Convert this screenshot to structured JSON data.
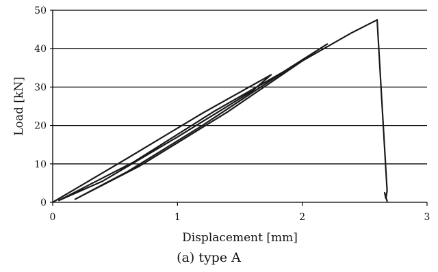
{
  "chart_data": {
    "type": "line",
    "caption": "(a) type A",
    "xlabel": "Displacement [mm]",
    "ylabel": "Load [kN]",
    "xlim": [
      0,
      3
    ],
    "ylim": [
      0,
      50
    ],
    "xticks": [
      0,
      1,
      2,
      3
    ],
    "yticks": [
      0,
      10,
      20,
      30,
      40,
      50
    ],
    "xtick_labels": [
      "0",
      "1",
      "2",
      "3"
    ],
    "ytick_labels": [
      "0",
      "10",
      "20",
      "30",
      "40",
      "50"
    ],
    "grid": "horizontal",
    "legend": "none",
    "line_color": "#1a1a1a",
    "series": [
      {
        "x": [
          0.0,
          0.6,
          1.2,
          1.75,
          1.6,
          1.0,
          0.4,
          0.05,
          0.65,
          1.3,
          1.85,
          2.2,
          1.9,
          1.2,
          0.6,
          0.18,
          0.7,
          1.4,
          2.0,
          2.4,
          2.6,
          2.64,
          2.68,
          2.67,
          2.66,
          2.68
        ],
        "y": [
          0.0,
          11.5,
          23.2,
          33.2,
          29.0,
          17.0,
          5.5,
          0.5,
          10.5,
          23.8,
          34.0,
          41.2,
          35.0,
          20.0,
          8.0,
          0.8,
          9.5,
          23.5,
          36.8,
          44.2,
          47.5,
          25.0,
          3.0,
          1.0,
          2.5,
          0.3
        ]
      }
    ]
  }
}
